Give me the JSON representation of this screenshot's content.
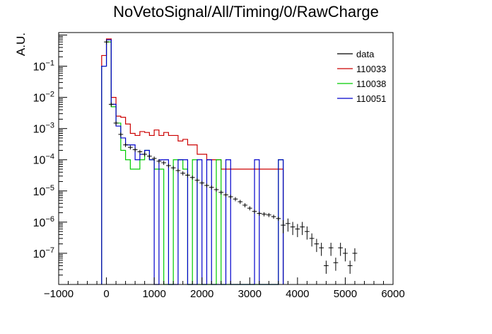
{
  "chart_data": {
    "type": "line",
    "title": "NoVetoSignal/All/Timing/0/RawCharge",
    "xlabel": "",
    "ylabel": "A.U.",
    "xlim": [
      -1000,
      6000
    ],
    "ylim": [
      1e-08,
      1.2
    ],
    "yscale": "log",
    "grid": false,
    "legend_position": "top-right",
    "x_ticks": [
      -1000,
      0,
      1000,
      2000,
      3000,
      4000,
      5000,
      6000
    ],
    "x_tick_labels": [
      "−1000",
      "0",
      "1000",
      "2000",
      "3000",
      "4000",
      "5000",
      "6000"
    ],
    "y_ticks": [
      1e-07,
      1e-06,
      1e-05,
      0.0001,
      0.001,
      0.01,
      0.1
    ],
    "y_tick_labels": [
      {
        "base": "10",
        "exp": "−7"
      },
      {
        "base": "10",
        "exp": "−6"
      },
      {
        "base": "10",
        "exp": "−5"
      },
      {
        "base": "10",
        "exp": "−4"
      },
      {
        "base": "10",
        "exp": "−3"
      },
      {
        "base": "10",
        "exp": "−2"
      },
      {
        "base": "10",
        "exp": "−1"
      }
    ],
    "bin_width": 100,
    "series": [
      {
        "name": "110033",
        "color": "#cc0000",
        "style": "histogram",
        "bin_edges_start": -100,
        "values": [
          0.22,
          0.75,
          0.01,
          0.0025,
          0.0023,
          0.0014,
          0.0007,
          0.0006,
          0.0008,
          0.00075,
          0.0006,
          0.0009,
          0.0006,
          0.00075,
          0.0006,
          0.0006,
          0.0004,
          0.00045,
          0.0003,
          0.0003,
          0.00015,
          0.00015,
          0.0001,
          0.0001,
          0.0001,
          5e-05,
          5e-05,
          5e-05,
          5e-05,
          5e-05,
          5e-05,
          5e-05,
          5e-05,
          5e-05,
          5e-05,
          5e-05,
          5e-05,
          5e-05
        ]
      },
      {
        "name": "110038",
        "color": "#00cc00",
        "style": "histogram",
        "bin_edges_start": -100,
        "values": [
          0.1,
          0.6,
          0.005,
          0.0015,
          0.0002,
          0.0001,
          5e-05,
          5e-05,
          0.0001,
          0.0002,
          0.0001,
          5e-05,
          5e-05,
          0,
          0,
          0.0001,
          0.0001,
          5e-05,
          0,
          0.0001,
          0,
          0,
          0,
          0,
          0.0001,
          0,
          0,
          0,
          0,
          0,
          0,
          0,
          0,
          0,
          0,
          0,
          0,
          0.0001
        ]
      },
      {
        "name": "110051",
        "color": "#0000cc",
        "style": "histogram",
        "bin_edges_start": -100,
        "values": [
          0.1,
          0.7,
          0.006,
          0.0012,
          0.0005,
          0.0003,
          0.0003,
          0.0001,
          0.00015,
          0.0002,
          0.0001,
          0,
          0.0001,
          0.0001,
          0,
          0,
          0.0001,
          0.0001,
          0,
          0,
          0.0001,
          0,
          0.0001,
          0,
          0,
          0,
          0.0001,
          0,
          0,
          0,
          0,
          0,
          0.0001,
          0,
          0,
          0,
          0,
          0.0001
        ]
      },
      {
        "name": "data",
        "color": "#000000",
        "style": "points",
        "x": [
          0,
          100,
          200,
          300,
          400,
          500,
          600,
          700,
          800,
          900,
          1000,
          1100,
          1200,
          1300,
          1400,
          1500,
          1600,
          1700,
          1800,
          1900,
          2000,
          2100,
          2200,
          2300,
          2400,
          2500,
          2600,
          2700,
          2800,
          2900,
          3000,
          3100,
          3200,
          3300,
          3400,
          3500,
          3600,
          3700,
          3800,
          3900,
          4000,
          4100,
          4200,
          4300,
          4400,
          4500,
          4600,
          4700,
          4800,
          4900,
          5000,
          5100,
          5200
        ],
        "y": [
          0.6,
          0.006,
          0.0015,
          0.00065,
          0.0003,
          0.00025,
          0.00021,
          0.00018,
          0.00015,
          0.00013,
          0.00011,
          9e-05,
          8e-05,
          6.5e-05,
          5.5e-05,
          4.5e-05,
          3.7e-05,
          3.2e-05,
          2.7e-05,
          2.2e-05,
          1.8e-05,
          1.5e-05,
          1.3e-05,
          1.1e-05,
          9e-06,
          7.5e-06,
          6.5e-06,
          5.5e-06,
          4.5e-06,
          3.5e-06,
          2.8e-06,
          2.2e-06,
          1.9e-06,
          1.8e-06,
          1.7e-06,
          1.5e-06,
          1.3e-06,
          8e-07,
          9e-07,
          7e-07,
          6e-07,
          7e-07,
          5e-07,
          3e-07,
          2e-07,
          1.5e-07,
          4e-08,
          1.5e-07,
          5e-08,
          1.5e-07,
          1e-07,
          4e-08,
          1e-07
        ],
        "xerr": 50
      }
    ]
  }
}
